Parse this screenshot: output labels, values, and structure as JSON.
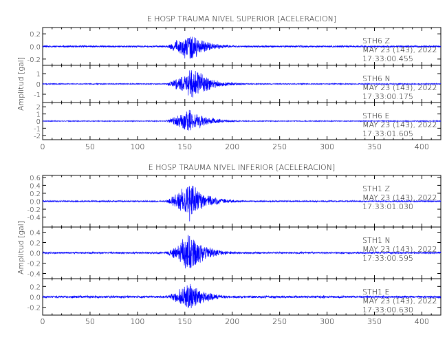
{
  "chart_data": [
    {
      "type": "line",
      "title": "E HOSP TRAUMA NIVEL SUPERIOR [ACELERACION]",
      "ylabel": "Amplitud  [gal]",
      "xlim": [
        0,
        420
      ],
      "xticks": [
        0,
        50,
        100,
        150,
        200,
        250,
        300,
        350,
        400
      ],
      "series": [
        {
          "station": "STH6",
          "component": "Z",
          "label": "STH6    Z",
          "date": "MAY 23 (143), 2022",
          "time": "17:33:00.455",
          "ylim": [
            -0.3,
            0.3
          ],
          "yticks": [
            0.2,
            0.0,
            -0.2
          ],
          "ytick_labels": [
            "0.2",
            "0.0",
            "-0.2"
          ],
          "peak_abs": 0.26,
          "noise_abs": 0.015,
          "onset_s": 127,
          "peak_time_s": 155,
          "coda_end_s": 225
        },
        {
          "station": "STH6",
          "component": "N",
          "label": "STH6    N",
          "date": "MAY 23 (143), 2022",
          "time": "17:33:00.175",
          "ylim": [
            -1.8,
            1.8
          ],
          "yticks": [
            1,
            0,
            -1
          ],
          "ytick_labels": [
            "1",
            "0",
            "-1"
          ],
          "peak_abs": 1.7,
          "noise_abs": 0.05,
          "onset_s": 127,
          "peak_time_s": 160,
          "coda_end_s": 230
        },
        {
          "station": "STH6",
          "component": "E",
          "label": "STH6    E",
          "date": "MAY 23 (143), 2022",
          "time": "17:33:01.605",
          "ylim": [
            -2.6,
            2.6
          ],
          "yticks": [
            2,
            1,
            0,
            -1,
            -2
          ],
          "ytick_labels": [
            "2",
            "1",
            "0",
            "-1",
            "-2"
          ],
          "peak_abs": 2.0,
          "noise_abs": 0.06,
          "onset_s": 127,
          "peak_time_s": 155,
          "coda_end_s": 225
        }
      ]
    },
    {
      "type": "line",
      "title": "E HOSP TRAUMA NIVEL INFERIOR [ACELERACION]",
      "ylabel": "Amplitud  [gal]",
      "xlim": [
        0,
        420
      ],
      "xticks": [
        0,
        50,
        100,
        150,
        200,
        250,
        300,
        350,
        400
      ],
      "series": [
        {
          "station": "STH1",
          "component": "Z",
          "label": "STH1    Z",
          "date": "MAY 23 (143), 2022",
          "time": "17:33:01.030",
          "ylim": [
            -0.65,
            0.65
          ],
          "yticks": [
            0.6,
            0.4,
            0.2,
            0.0,
            -0.2,
            -0.4
          ],
          "ytick_labels": [
            "0.6",
            "0.4",
            "0.2",
            "0.0",
            "-0.2",
            "-0.4"
          ],
          "peak_abs": 0.55,
          "noise_abs": 0.02,
          "onset_s": 127,
          "peak_time_s": 155,
          "coda_end_s": 225
        },
        {
          "station": "STH1",
          "component": "N",
          "label": "STH1    N",
          "date": "MAY 23 (143), 2022",
          "time": "17:33:00.595",
          "ylim": [
            -0.5,
            0.5
          ],
          "yticks": [
            0.4,
            0.2,
            0.0,
            -0.2,
            -0.4
          ],
          "ytick_labels": [
            "0.4",
            "0.2",
            "0.0",
            "-0.2",
            "-0.4"
          ],
          "peak_abs": 0.42,
          "noise_abs": 0.02,
          "onset_s": 127,
          "peak_time_s": 155,
          "coda_end_s": 225
        },
        {
          "station": "STH1",
          "component": "E",
          "label": "STH1    E",
          "date": "MAY 23 (143), 2022",
          "time": "17:33:00.630",
          "ylim": [
            -0.35,
            0.35
          ],
          "yticks": [
            0.2,
            0.0,
            -0.2
          ],
          "ytick_labels": [
            "0.2",
            "0.0",
            "-0.2"
          ],
          "peak_abs": 0.3,
          "noise_abs": 0.025,
          "onset_s": 127,
          "peak_time_s": 155,
          "coda_end_s": 225
        }
      ]
    }
  ],
  "colors": {
    "trace": "#0000ff",
    "axes": "#000000",
    "background": "#ffffff"
  }
}
